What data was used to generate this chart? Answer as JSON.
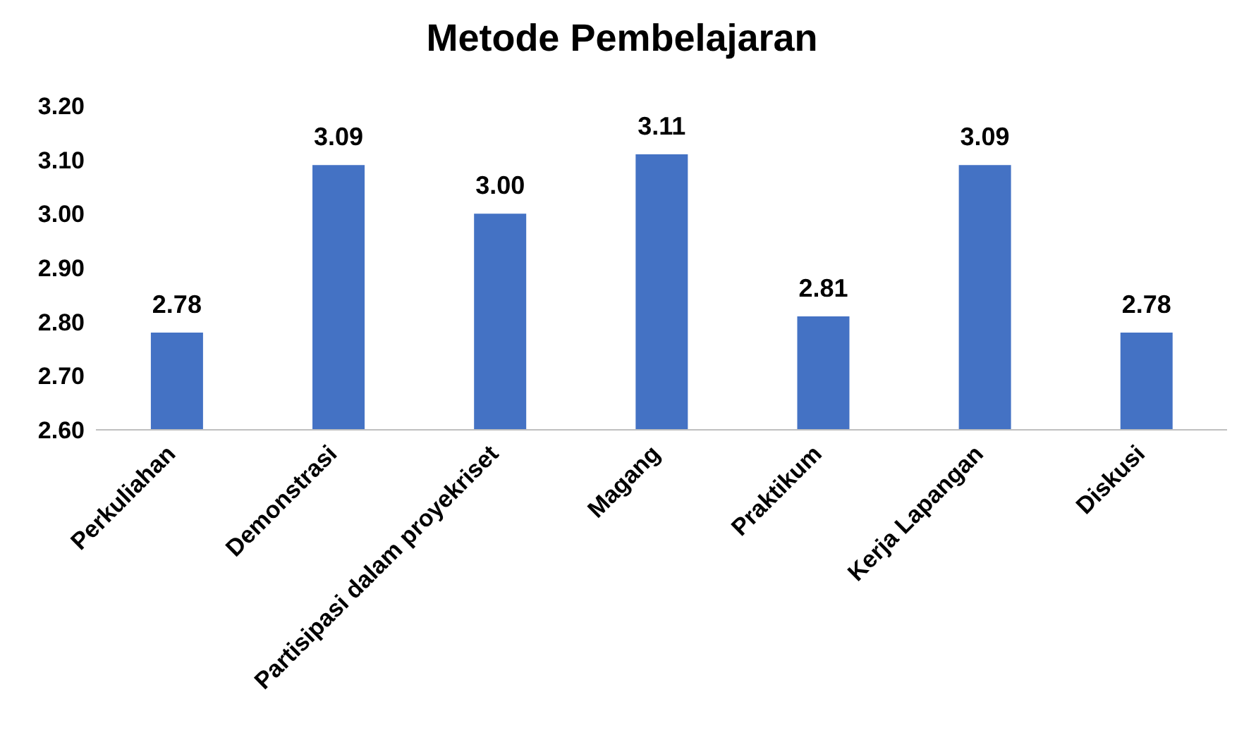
{
  "chart_data": {
    "type": "bar",
    "title": "Metode Pembelajaran",
    "categories": [
      "Perkuliahan",
      "Demonstrasi",
      "Partisipasi dalam proyekriset",
      "Magang",
      "Praktikum",
      "Kerja Lapangan",
      "Diskusi"
    ],
    "values": [
      2.78,
      3.09,
      3.0,
      3.11,
      2.81,
      3.09,
      2.78
    ],
    "color": "#4472c4",
    "ylim": [
      2.6,
      3.2
    ],
    "yticks": [
      {
        "value": 2.6,
        "label": "2.60"
      },
      {
        "value": 2.7,
        "label": "2.70"
      },
      {
        "value": 2.8,
        "label": "2.80"
      },
      {
        "value": 2.9,
        "label": "2.90"
      },
      {
        "value": 3.0,
        "label": "3.00"
      },
      {
        "value": 3.1,
        "label": "3.10"
      },
      {
        "value": 3.2,
        "label": "3.20"
      }
    ],
    "value_labels": [
      "2.78",
      "3.09",
      "3.00",
      "3.11",
      "2.81",
      "3.09",
      "2.78"
    ],
    "grid": false,
    "legend": false
  }
}
